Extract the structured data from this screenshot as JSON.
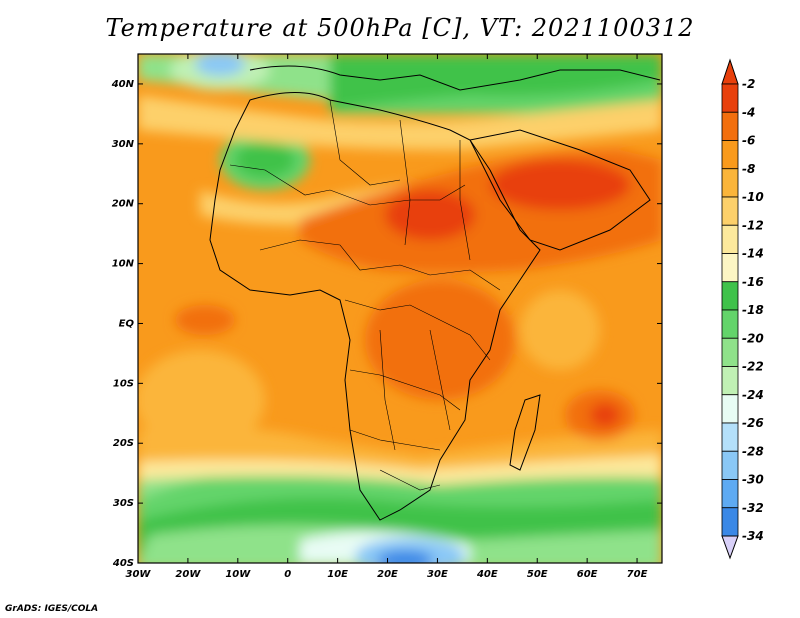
{
  "title": "Temperature at 500hPa [C], VT: 2021100312",
  "credit": "GrADS: IGES/COLA",
  "lat_labels": [
    "40N",
    "30N",
    "20N",
    "10N",
    "EQ",
    "10S",
    "20S",
    "30S",
    "40S"
  ],
  "lon_labels": [
    "30W",
    "20W",
    "10W",
    "0",
    "10E",
    "20E",
    "30E",
    "40E",
    "50E",
    "60E",
    "70E"
  ],
  "colorbar": {
    "labels": [
      "-2",
      "-4",
      "-6",
      "-8",
      "-10",
      "-12",
      "-14",
      "-16",
      "-18",
      "-20",
      "-22",
      "-24",
      "-26",
      "-28",
      "-30",
      "-32",
      "-34"
    ],
    "colors": [
      "#e8400c",
      "#f26f0e",
      "#f99a1c",
      "#fbb53a",
      "#fdd06a",
      "#fde99c",
      "#fdf6c4",
      "#3fc24a",
      "#63d46a",
      "#8fe28a",
      "#c0f0b4",
      "#e8fcf4",
      "#b4e0fa",
      "#8ac8f6",
      "#5eaaf2",
      "#3a88e6",
      "#1c64d6",
      "#0e42b4",
      "#0a2a8c",
      "#0a1470"
    ],
    "low_tip_color": "#d8d0f8",
    "high_tip_color": "#e8400c"
  },
  "chart_data": {
    "type": "heatmap",
    "variable": "Temperature at 500hPa",
    "units": "C",
    "valid_time": "2021100312",
    "xlim": [
      -30,
      75
    ],
    "ylim": [
      -40,
      45
    ],
    "x_ticks": [
      -30,
      -20,
      -10,
      0,
      10,
      20,
      30,
      40,
      50,
      60,
      70
    ],
    "y_ticks": [
      40,
      30,
      20,
      10,
      0,
      -10,
      -20,
      -30,
      -40
    ],
    "contour_levels": [
      -2,
      -4,
      -6,
      -8,
      -10,
      -12,
      -14,
      -16,
      -18,
      -20,
      -22,
      -24,
      -26,
      -28,
      -30,
      -32,
      -34
    ]
  }
}
